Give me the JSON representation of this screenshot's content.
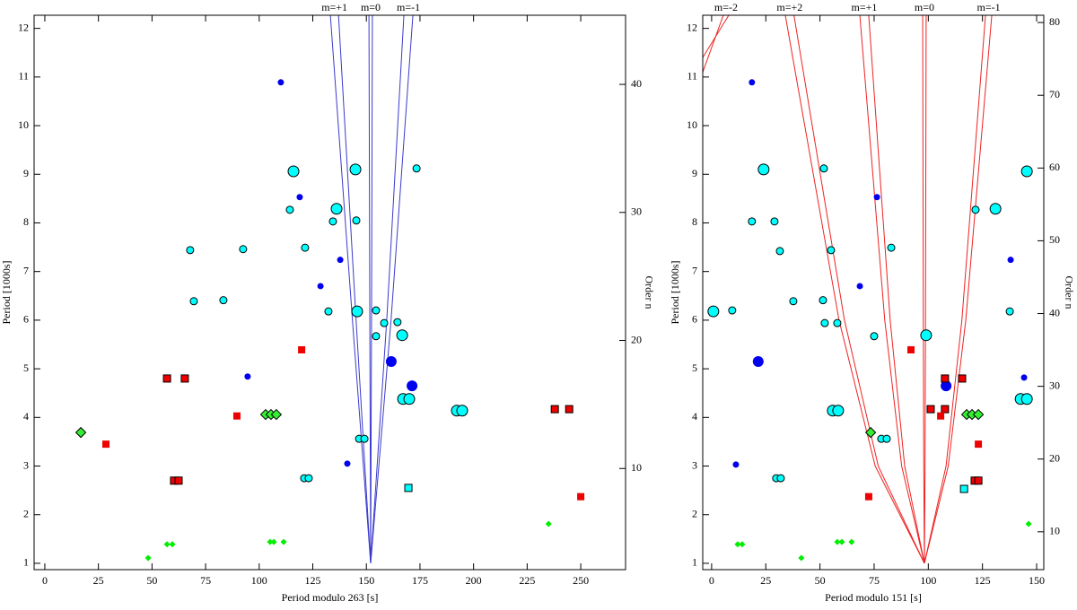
{
  "chart_data": [
    {
      "type": "scatter",
      "x_label": "Period modulo 263 [s]",
      "y_label": "Period [1000s]",
      "y2_label": "Order n",
      "xlim": [
        -5.0,
        270.9
      ],
      "xticks": [
        0,
        25,
        50,
        75,
        100,
        125,
        150,
        175,
        200,
        225,
        250
      ],
      "ylim": [
        0.87,
        12.27
      ],
      "yticks": [
        1,
        2,
        3,
        4,
        5,
        6,
        7,
        8,
        9,
        10,
        11,
        12
      ],
      "y2lim": [
        2.1,
        45.4
      ],
      "y2ticks": [
        10,
        20,
        30,
        40
      ],
      "curves": [
        {
          "label": "m=+1",
          "color": "#3a3acc",
          "lines": [
            {
              "x": [
                152,
                143.5,
                133.2
              ],
              "y": [
                1,
                6,
                12.27
              ]
            },
            {
              "x": [
                152,
                145.2,
                137.0
              ],
              "y": [
                1,
                6,
                12.27
              ]
            }
          ]
        },
        {
          "label": "m=0",
          "color": "#3a3acc",
          "lines": [
            {
              "x": [
                152,
                151.6,
                151.2
              ],
              "y": [
                1,
                6,
                12.27
              ]
            },
            {
              "x": [
                152,
                152.4,
                152.8
              ],
              "y": [
                1,
                6,
                12.27
              ]
            }
          ]
        },
        {
          "label": "m=-1",
          "color": "#3a3acc",
          "lines": [
            {
              "x": [
                152,
                159.5,
                167.5
              ],
              "y": [
                1,
                6,
                12.27
              ]
            },
            {
              "x": [
                152,
                161.5,
                171.7
              ],
              "y": [
                1,
                6,
                12.27
              ]
            }
          ]
        }
      ],
      "series": [
        {
          "marker": "circle",
          "size": "small",
          "color": "#0000ee",
          "edge": null,
          "x": [
            110.1,
            118.9,
            137.8,
            128.6,
            94.6,
            141.1
          ],
          "y": [
            10.89,
            8.53,
            7.24,
            6.7,
            4.84,
            3.05
          ]
        },
        {
          "marker": "circle",
          "size": "large",
          "color": "#0000ee",
          "edge": null,
          "x": [
            161.6,
            171.3
          ],
          "y": [
            5.15,
            4.65
          ]
        },
        {
          "marker": "circle",
          "size": "small",
          "color": "#00ffff",
          "edge": "#000000",
          "x": [
            173.4,
            114.3,
            134.4,
            145.3,
            121.4,
            92.5,
            67.8,
            69.5,
            83.3,
            132.3,
            154.5,
            158.3,
            164.5,
            154.5,
            146.6,
            149.1,
            121.0,
            123.1
          ],
          "y": [
            9.12,
            8.27,
            8.03,
            8.05,
            7.49,
            7.46,
            7.44,
            6.39,
            6.41,
            6.18,
            6.2,
            5.94,
            5.96,
            5.67,
            3.56,
            3.56,
            2.75,
            2.75
          ]
        },
        {
          "marker": "circle",
          "size": "large",
          "color": "#00ffff",
          "edge": "#000000",
          "x": [
            116.0,
            144.9,
            136.1,
            145.7,
            166.7,
            167.1,
            170.0,
            192.2,
            194.7
          ],
          "y": [
            9.06,
            9.1,
            8.29,
            6.18,
            5.69,
            4.38,
            4.38,
            4.14,
            4.14
          ]
        },
        {
          "marker": "square",
          "size": "small",
          "color": "#00ffff",
          "edge": "#000000",
          "x": [
            169.6
          ],
          "y": [
            2.55
          ]
        },
        {
          "marker": "square",
          "size": "small",
          "color": "#ee0000",
          "edge": "#000000",
          "x": [
            57.0,
            65.3,
            60.3,
            62.4,
            237.9,
            244.6
          ],
          "y": [
            4.8,
            4.8,
            2.7,
            2.7,
            4.17,
            4.17
          ]
        },
        {
          "marker": "square",
          "size": "small",
          "color": "#ee0000",
          "edge": null,
          "x": [
            119.8,
            89.6,
            28.5,
            250.0
          ],
          "y": [
            5.39,
            4.03,
            3.45,
            2.37
          ]
        },
        {
          "marker": "diamond",
          "size": "large",
          "color": "#33ee33",
          "edge": "#000000",
          "x": [
            16.8,
            103.0,
            105.5,
            108.0
          ],
          "y": [
            3.69,
            4.06,
            4.06,
            4.06
          ]
        },
        {
          "marker": "diamond",
          "size": "small",
          "color": "#00ee00",
          "edge": null,
          "x": [
            48.2,
            57.0,
            59.5,
            105.1,
            106.8,
            111.4,
            235.0
          ],
          "y": [
            1.11,
            1.39,
            1.39,
            1.44,
            1.44,
            1.44,
            1.81
          ]
        }
      ]
    },
    {
      "type": "scatter",
      "x_label": "Period modulo 151 [s]",
      "y_label": "Period [1000s]",
      "y2_label": "Order n",
      "xlim": [
        -4.1,
        153.3
      ],
      "xticks": [
        0,
        25,
        50,
        75,
        100,
        125,
        150
      ],
      "ylim": [
        0.87,
        12.27
      ],
      "yticks": [
        1,
        2,
        3,
        4,
        5,
        6,
        7,
        8,
        9,
        10,
        11,
        12
      ],
      "y2lim": [
        4.8,
        81.0
      ],
      "y2ticks": [
        10,
        20,
        30,
        40,
        50,
        60,
        70,
        80
      ],
      "curves": [
        {
          "label": "m=-2",
          "color": "#ee2222",
          "lines": [
            {
              "x": [
                -4.1,
                5.4
              ],
              "y": [
                11.1,
                12.27
              ]
            },
            {
              "x": [
                -4.1,
                7.9
              ],
              "y": [
                11.4,
                12.27
              ]
            }
          ]
        },
        {
          "label": "m=+2",
          "color": "#ee2222",
          "lines": [
            {
              "x": [
                98.2,
                75.5,
                58.8,
                34.0
              ],
              "y": [
                1,
                3,
                6,
                12.27
              ]
            },
            {
              "x": [
                98.2,
                76.9,
                61.3,
                38.0
              ],
              "y": [
                1,
                3,
                6,
                12.27
              ]
            }
          ]
        },
        {
          "label": "m=+1",
          "color": "#ee2222",
          "lines": [
            {
              "x": [
                98.2,
                87.7,
                79.9,
                68.4
              ],
              "y": [
                1,
                3,
                6,
                12.27
              ]
            },
            {
              "x": [
                98.2,
                89.1,
                82.4,
                72.5
              ],
              "y": [
                1,
                3,
                6,
                12.27
              ]
            }
          ]
        },
        {
          "label": "m=0",
          "color": "#ee2222",
          "lines": [
            {
              "x": [
                98.2,
                97.9,
                97.7,
                97.4
              ],
              "y": [
                1,
                3,
                6,
                12.27
              ]
            },
            {
              "x": [
                98.2,
                98.5,
                98.7,
                99.0
              ],
              "y": [
                1,
                3,
                6,
                12.27
              ]
            }
          ]
        },
        {
          "label": "m=-1",
          "color": "#ee2222",
          "lines": [
            {
              "x": [
                98.2,
                108.2,
                115.5,
                126.4
              ],
              "y": [
                1,
                3,
                6,
                12.27
              ]
            },
            {
              "x": [
                98.2,
                109.2,
                117.3,
                129.3
              ],
              "y": [
                1,
                3,
                6,
                12.27
              ]
            }
          ]
        }
      ],
      "series": [
        {
          "marker": "circle",
          "size": "small",
          "color": "#0000ee",
          "edge": null,
          "x": [
            18.6,
            76.3,
            138.0,
            68.4,
            11.2,
            144.2
          ],
          "y": [
            10.89,
            8.53,
            7.24,
            6.7,
            3.03,
            4.82
          ]
        },
        {
          "marker": "circle",
          "size": "large",
          "color": "#0000ee",
          "edge": null,
          "x": [
            21.5,
            108.2
          ],
          "y": [
            5.15,
            4.65
          ]
        },
        {
          "marker": "circle",
          "size": "small",
          "color": "#00ffff",
          "edge": "#000000",
          "x": [
            51.8,
            121.8,
            18.6,
            29.0,
            31.5,
            55.1,
            82.9,
            37.7,
            51.4,
            9.5,
            137.6,
            52.2,
            58.0,
            75.0,
            78.3,
            80.8,
            29.8,
            31.9
          ],
          "y": [
            9.12,
            8.27,
            8.03,
            8.03,
            7.42,
            7.44,
            7.49,
            6.39,
            6.41,
            6.2,
            6.18,
            5.94,
            5.94,
            5.67,
            3.56,
            3.56,
            2.75,
            2.75
          ]
        },
        {
          "marker": "circle",
          "size": "large",
          "color": "#00ffff",
          "edge": "#000000",
          "x": [
            0.8,
            24.0,
            145.5,
            131.0,
            99.0,
            55.9,
            58.4,
            142.6,
            145.5
          ],
          "y": [
            6.18,
            9.1,
            9.06,
            8.29,
            5.69,
            4.14,
            4.14,
            4.38,
            4.38
          ]
        },
        {
          "marker": "square",
          "size": "small",
          "color": "#00ffff",
          "edge": "#000000",
          "x": [
            116.5
          ],
          "y": [
            2.53
          ]
        },
        {
          "marker": "square",
          "size": "small",
          "color": "#ee0000",
          "edge": "#000000",
          "x": [
            107.7,
            115.6,
            101.1,
            107.7,
            121.4,
            123.1
          ],
          "y": [
            4.8,
            4.8,
            4.17,
            4.17,
            2.7,
            2.7
          ]
        },
        {
          "marker": "square",
          "size": "small",
          "color": "#ee0000",
          "edge": null,
          "x": [
            92.0,
            105.7,
            123.1,
            72.5
          ],
          "y": [
            5.39,
            4.03,
            3.45,
            2.37
          ]
        },
        {
          "marker": "diamond",
          "size": "large",
          "color": "#33ee33",
          "edge": "#000000",
          "x": [
            73.4,
            117.7,
            120.2,
            123.1
          ],
          "y": [
            3.69,
            4.06,
            4.06,
            4.06
          ]
        },
        {
          "marker": "diamond",
          "size": "small",
          "color": "#00ee00",
          "edge": null,
          "x": [
            12.0,
            14.1,
            41.4,
            58.0,
            60.1,
            64.6,
            146.3
          ],
          "y": [
            1.39,
            1.39,
            1.11,
            1.44,
            1.44,
            1.44,
            1.81
          ]
        }
      ]
    }
  ]
}
